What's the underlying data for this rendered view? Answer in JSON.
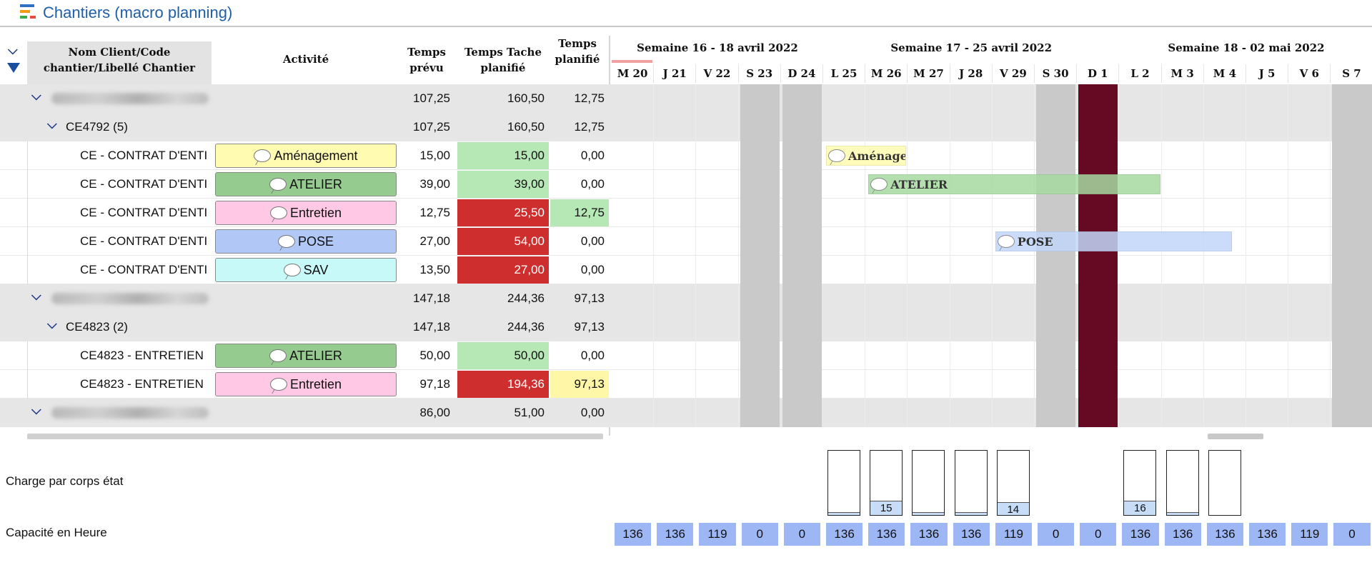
{
  "window": {
    "title": "Chantiers (macro planning)"
  },
  "colors": {
    "accent": "#1f5fa8",
    "group_bg": "#e6e6e6",
    "weekend": "#c9c9c9",
    "holiday": "#650a22",
    "good": "#b5e8b5",
    "bad": "#cf2e2e",
    "warn": "#fff7a8",
    "capacity": "#9db6f4"
  },
  "table": {
    "headers": {
      "name": "Nom Client/Code chantier/Libellé Chantier",
      "activity": "Activité",
      "temps_prevu": "Temps prévu",
      "temps_tache": "Temps Tache planifié",
      "temps_planifie": "Temps planifié"
    },
    "rows": [
      {
        "kind": "group",
        "indent": 0,
        "label": "",
        "blurred": true,
        "prevu": "107,25",
        "tache": "160,50",
        "planifie": "12,75"
      },
      {
        "kind": "group",
        "indent": 1,
        "label": "CE4792 (5)",
        "blurred": false,
        "prevu": "107,25",
        "tache": "160,50",
        "planifie": "12,75"
      },
      {
        "kind": "task",
        "label": "CE - CONTRAT D'ENTI",
        "activity": "Aménagement",
        "act_color": "#fffbb0",
        "prevu": "15,00",
        "tache": "15,00",
        "tache_state": "good",
        "planifie": "0,00",
        "planifie_state": "none"
      },
      {
        "kind": "task",
        "label": "CE - CONTRAT D'ENTI",
        "activity": "ATELIER",
        "act_color": "#96cb8f",
        "prevu": "39,00",
        "tache": "39,00",
        "tache_state": "good",
        "planifie": "0,00",
        "planifie_state": "none"
      },
      {
        "kind": "task",
        "label": "CE - CONTRAT D'ENTI",
        "activity": "Entretien",
        "act_color": "#ffc9e6",
        "prevu": "12,75",
        "tache": "25,50",
        "tache_state": "bad",
        "planifie": "12,75",
        "planifie_state": "good"
      },
      {
        "kind": "task",
        "label": "CE - CONTRAT D'ENTI",
        "activity": "POSE",
        "act_color": "#b1c8f7",
        "prevu": "27,00",
        "tache": "54,00",
        "tache_state": "bad",
        "planifie": "0,00",
        "planifie_state": "none"
      },
      {
        "kind": "task",
        "label": "CE - CONTRAT D'ENTI",
        "activity": "SAV",
        "act_color": "#c8f9f9",
        "prevu": "13,50",
        "tache": "27,00",
        "tache_state": "bad",
        "planifie": "0,00",
        "planifie_state": "none"
      },
      {
        "kind": "group",
        "indent": 0,
        "label": "",
        "blurred": true,
        "prevu": "147,18",
        "tache": "244,36",
        "planifie": "97,13"
      },
      {
        "kind": "group",
        "indent": 1,
        "label": "CE4823 (2)",
        "blurred": false,
        "prevu": "147,18",
        "tache": "244,36",
        "planifie": "97,13"
      },
      {
        "kind": "task",
        "label": "CE4823 - ENTRETIEN",
        "activity": "ATELIER",
        "act_color": "#96cb8f",
        "prevu": "50,00",
        "tache": "50,00",
        "tache_state": "good",
        "planifie": "0,00",
        "planifie_state": "none"
      },
      {
        "kind": "task",
        "label": "CE4823 - ENTRETIEN",
        "activity": "Entretien",
        "act_color": "#ffc9e6",
        "prevu": "97,18",
        "tache": "194,36",
        "tache_state": "bad",
        "planifie": "97,13",
        "planifie_state": "warn"
      },
      {
        "kind": "group",
        "indent": 0,
        "label": "",
        "blurred": true,
        "prevu": "86,00",
        "tache": "51,00",
        "planifie": "0,00"
      }
    ]
  },
  "timeline": {
    "weeks": [
      {
        "label": "Semaine 16 - 18 avril 2022",
        "start": 0,
        "span": 5
      },
      {
        "label": "Semaine 17 - 25 avril 2022",
        "start": 5,
        "span": 7
      },
      {
        "label": "Semaine 18 - 02 mai 2022",
        "start": 12,
        "span": 6
      }
    ],
    "days": [
      {
        "label": "M 20",
        "type": "work"
      },
      {
        "label": "J 21",
        "type": "work"
      },
      {
        "label": "V 22",
        "type": "work"
      },
      {
        "label": "S 23",
        "type": "weekend"
      },
      {
        "label": "D 24",
        "type": "weekend"
      },
      {
        "label": "L 25",
        "type": "work"
      },
      {
        "label": "M 26",
        "type": "work"
      },
      {
        "label": "M 27",
        "type": "work"
      },
      {
        "label": "J 28",
        "type": "work"
      },
      {
        "label": "V 29",
        "type": "work"
      },
      {
        "label": "S 30",
        "type": "weekend"
      },
      {
        "label": "D 1",
        "type": "holiday"
      },
      {
        "label": "L 2",
        "type": "work"
      },
      {
        "label": "M 3",
        "type": "work"
      },
      {
        "label": "M 4",
        "type": "work"
      },
      {
        "label": "J 5",
        "type": "work"
      },
      {
        "label": "V 6",
        "type": "work"
      },
      {
        "label": "S 7",
        "type": "weekend"
      }
    ],
    "bars": [
      {
        "row": 2,
        "label": "Aménagement",
        "from_day": 5,
        "to_day": 6.9,
        "color": "#fffbb0"
      },
      {
        "row": 3,
        "label": "ATELIER",
        "from_day": 6,
        "to_day": 12.9,
        "color": "#a6d9a0"
      },
      {
        "row": 5,
        "label": "POSE",
        "from_day": 9,
        "to_day": 14.6,
        "color": "#c3d6fa"
      }
    ]
  },
  "summary": {
    "charge_label": "Charge par corps état",
    "capacity_label": "Capacité en Heure",
    "charge": [
      {
        "day": 5,
        "fill_pct": 5,
        "value": ""
      },
      {
        "day": 6,
        "fill_pct": 22,
        "value": "15"
      },
      {
        "day": 7,
        "fill_pct": 5,
        "value": ""
      },
      {
        "day": 8,
        "fill_pct": 5,
        "value": ""
      },
      {
        "day": 9,
        "fill_pct": 20,
        "value": "14"
      },
      {
        "day": 12,
        "fill_pct": 22,
        "value": "16"
      },
      {
        "day": 13,
        "fill_pct": 5,
        "value": ""
      },
      {
        "day": 14,
        "fill_pct": 0,
        "value": ""
      }
    ],
    "capacity": [
      "136",
      "136",
      "119",
      "0",
      "0",
      "136",
      "136",
      "136",
      "136",
      "119",
      "0",
      "0",
      "136",
      "136",
      "136",
      "136",
      "119",
      "0"
    ]
  }
}
